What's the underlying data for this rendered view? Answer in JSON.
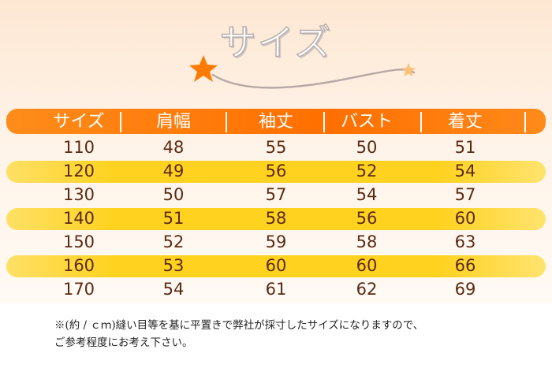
{
  "title": "サイズ",
  "table": {
    "headers": [
      "サイズ",
      "肩幅",
      "袖丈",
      "バスト",
      "着丈"
    ],
    "rows": [
      [
        "110",
        "48",
        "55",
        "50",
        "51"
      ],
      [
        "120",
        "49",
        "56",
        "52",
        "54"
      ],
      [
        "130",
        "50",
        "57",
        "54",
        "57"
      ],
      [
        "140",
        "51",
        "58",
        "56",
        "60"
      ],
      [
        "150",
        "52",
        "59",
        "58",
        "63"
      ],
      [
        "160",
        "53",
        "60",
        "60",
        "66"
      ],
      [
        "170",
        "54",
        "61",
        "62",
        "69"
      ]
    ]
  },
  "note": {
    "line1": "※(約 / ｃｍ)縫い目等を基に平置きで弊社が採寸したサイズになりますので、",
    "line2": "ご参考程度にお考え下さい。"
  },
  "colors": {
    "header": "#ff7a0a",
    "stripe": "#ffd21f",
    "text": "#5a2a14",
    "star": "#ff7a00"
  },
  "icons": [
    "star-icon",
    "small-star-icon",
    "swirl-decoration"
  ]
}
